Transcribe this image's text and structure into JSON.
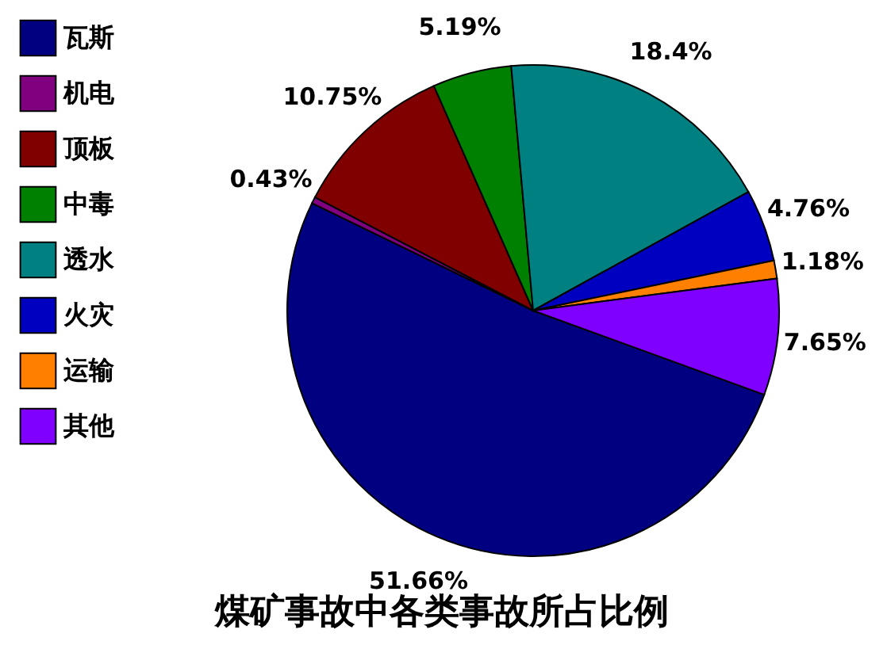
{
  "chart_data": {
    "type": "pie",
    "title": "煤矿事故中各类事故所占比例",
    "categories": [
      "瓦斯",
      "机电",
      "顶板",
      "中毒",
      "透水",
      "火灾",
      "运输",
      "其他"
    ],
    "values": [
      51.66,
      0.43,
      10.75,
      5.19,
      18.4,
      4.76,
      1.18,
      7.65
    ],
    "colors": [
      "#000080",
      "#800080",
      "#800000",
      "#008000",
      "#008080",
      "#0000c0",
      "#ff8000",
      "#8000ff"
    ],
    "value_labels": [
      "51.66%",
      "0.43%",
      "10.75%",
      "5.19%",
      "18.4%",
      "4.76%",
      "1.18%",
      "7.65%"
    ],
    "legend": "top left"
  }
}
